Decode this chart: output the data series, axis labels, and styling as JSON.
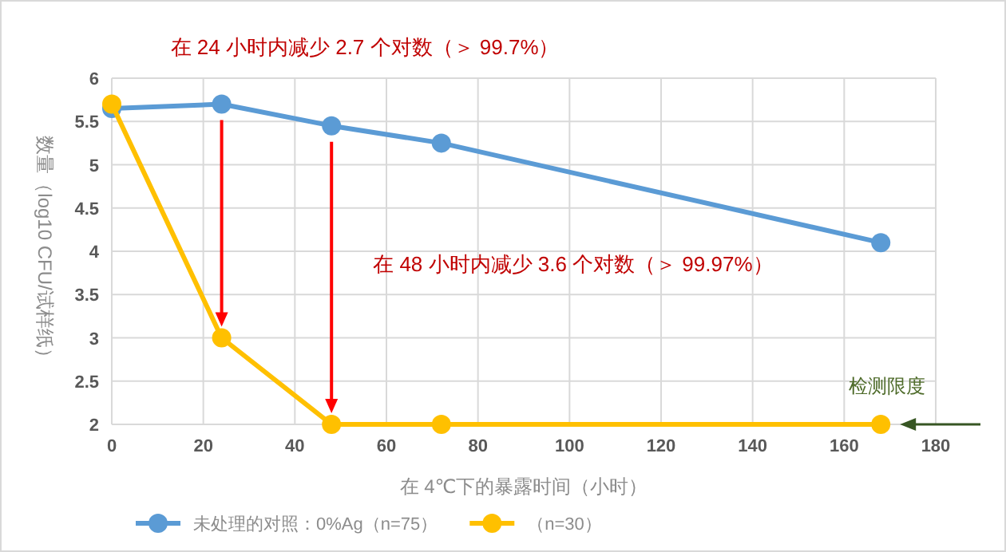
{
  "chart_data": {
    "type": "line",
    "xlabel": "在 4℃下的暴露时间（小时）",
    "ylabel": "数量（log10 CFU/试样纸）",
    "x": [
      0,
      24,
      48,
      72,
      168
    ],
    "series": [
      {
        "name": "未处理的对照：0%Ag（n=75）",
        "color": "#5b9bd5",
        "values": [
          5.65,
          5.7,
          5.45,
          5.25,
          4.1
        ]
      },
      {
        "name": "（n=30）",
        "color": "#ffc000",
        "values": [
          5.7,
          3,
          2,
          2,
          2
        ]
      }
    ],
    "xlim": [
      0,
      180
    ],
    "xticks": [
      0,
      20,
      40,
      60,
      80,
      100,
      120,
      140,
      160,
      180
    ],
    "ylim": [
      2,
      6
    ],
    "yticks": [
      2,
      2.5,
      3,
      3.5,
      4,
      4.5,
      5,
      5.5,
      6
    ],
    "grid": true,
    "legend": "bottom",
    "marker": "circle",
    "line_style": "solid",
    "annotations": [
      "在 24 小时内减少 2.7 个对数（＞ 99.7%）",
      "在 48 小时内减少 3.6 个对数（＞ 99.97%）",
      {
        "text": "检测限度",
        "x": 168,
        "y": 2
      }
    ]
  }
}
